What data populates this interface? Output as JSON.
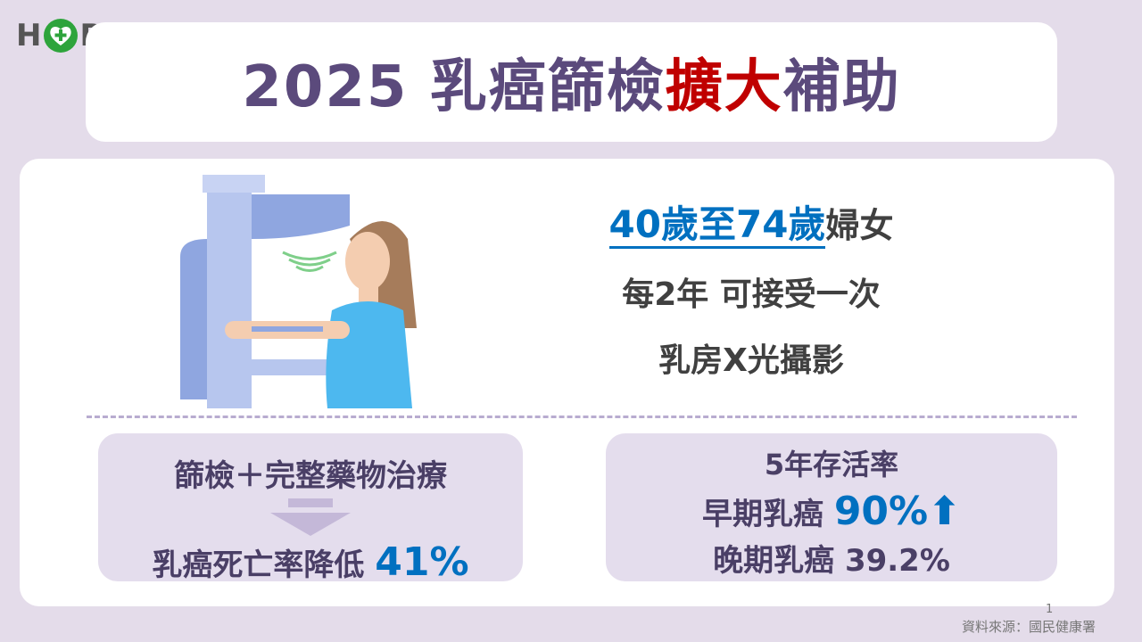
{
  "logo": {
    "text": "HOPE",
    "letters_left": "H",
    "letters_right": "PE"
  },
  "title": {
    "part1": "2025 乳癌篩檢",
    "highlight": "擴大",
    "part2": "補助"
  },
  "info": {
    "age_range_1": "40歲至74歲",
    "age_suffix": "婦女",
    "frequency": "每2年 可接受一次",
    "exam": "乳房X光攝影"
  },
  "box_left": {
    "top": "篩檢＋完整藥物治療",
    "bottom_text": "乳癌死亡率降低",
    "bottom_value": "41%"
  },
  "box_right": {
    "heading": "5年存活率",
    "early_label": "早期乳癌",
    "early_value": "90%",
    "early_icon": "arrow-up-icon",
    "late_label": "晚期乳癌",
    "late_value": "39.2%"
  },
  "footer": {
    "page": "1",
    "source": "資料來源：國民健康署"
  },
  "colors": {
    "title": "#5b4a7c",
    "highlight": "#c00000",
    "accent": "#0070c0",
    "background": "#e4dcea"
  }
}
